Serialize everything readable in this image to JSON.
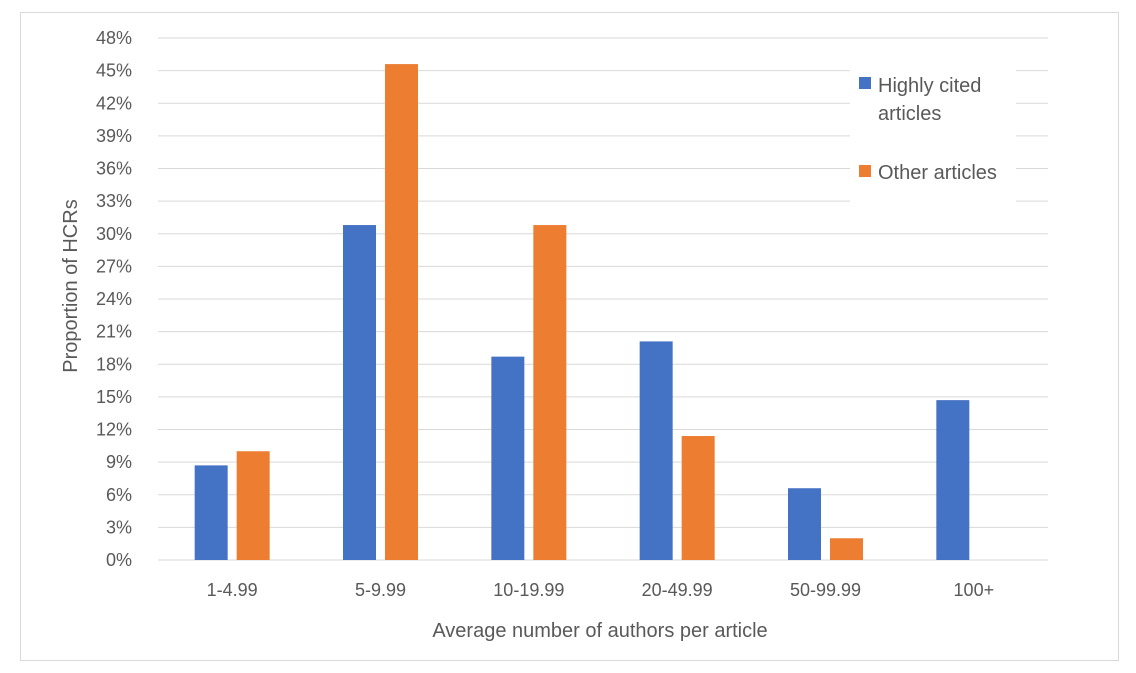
{
  "chart_data": {
    "type": "bar",
    "title": "",
    "xlabel": "Average number of authors per article",
    "ylabel": "Proportion of HCRs",
    "categories": [
      "1-4.99",
      "5-9.99",
      "10-19.99",
      "20-49.99",
      "50-99.99",
      "100+"
    ],
    "series": [
      {
        "name": "Highly cited articles",
        "values": [
          8.7,
          30.8,
          18.7,
          20.1,
          6.6,
          14.7
        ]
      },
      {
        "name": "Other articles",
        "values": [
          10.0,
          45.6,
          30.8,
          11.4,
          2.0,
          0
        ]
      }
    ],
    "ylim": [
      0,
      48
    ],
    "yticks": [
      "0%",
      "3%",
      "6%",
      "9%",
      "12%",
      "15%",
      "18%",
      "21%",
      "24%",
      "27%",
      "30%",
      "33%",
      "36%",
      "39%",
      "42%",
      "45%",
      "48%"
    ],
    "grid": true,
    "legend_position": "top-right",
    "colors": [
      "#4472C4",
      "#ED7D31"
    ]
  }
}
